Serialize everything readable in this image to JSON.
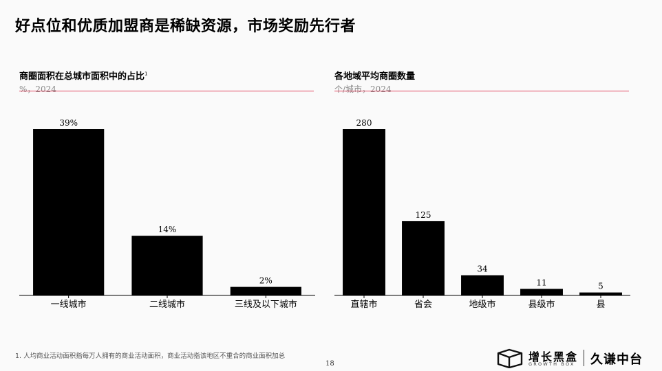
{
  "page": {
    "title": "好点位和优质加盟商是稀缺资源，市场奖励先行者",
    "footnote": "1. 人均商业活动面积指每万人拥有的商业活动面积，商业活动指该地区不重合的商业面积加总",
    "page_number": "18",
    "logo": {
      "name": "增长黑盒",
      "name_en": "GROWTH BOX",
      "partner": "久谦中台"
    },
    "accent_color": "#e0455f",
    "bar_color": "#000000"
  },
  "chart_data": [
    {
      "type": "bar",
      "title": "商圈面积在总城市面积中的占比",
      "title_sup": "1",
      "subtitle": "%，2024",
      "categories": [
        "一线城市",
        "二线城市",
        "三线及以下城市"
      ],
      "values": [
        39,
        14,
        2
      ],
      "value_labels": [
        "39%",
        "14%",
        "2%"
      ],
      "ylim": [
        0,
        39
      ],
      "grid": false,
      "legend": "none"
    },
    {
      "type": "bar",
      "title": "各地域平均商圈数量",
      "subtitle": "个/城市，2024",
      "categories": [
        "直辖市",
        "省会",
        "地级市",
        "县级市",
        "县"
      ],
      "values": [
        280,
        125,
        34,
        11,
        5
      ],
      "value_labels": [
        "280",
        "125",
        "34",
        "11",
        "5"
      ],
      "ylim": [
        0,
        280
      ],
      "grid": false,
      "legend": "none"
    }
  ]
}
